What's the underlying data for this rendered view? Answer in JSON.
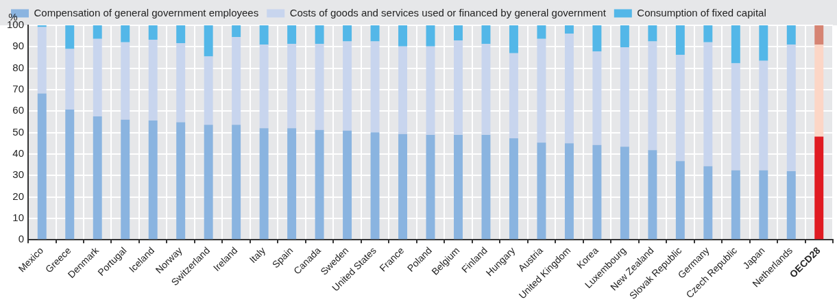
{
  "chart_data": {
    "type": "bar",
    "stacked": true,
    "ylabel": "%",
    "ylim": [
      0,
      100
    ],
    "yticks": [
      0,
      10,
      20,
      30,
      40,
      50,
      60,
      70,
      80,
      90,
      100
    ],
    "grid": true,
    "legend": "top",
    "categories": [
      "Mexico",
      "Greece",
      "Denmark",
      "Portugal",
      "Iceland",
      "Norway",
      "Switzerland",
      "Ireland",
      "Italy",
      "Spain",
      "Canada",
      "Sweden",
      "United States",
      "France",
      "Poland",
      "Belgium",
      "Finland",
      "Hungary",
      "Austria",
      "United Kingdom",
      "Korea",
      "Luxembourg",
      "New Zealand",
      "Slovak Republic",
      "Germany",
      "Czech Republic",
      "Japan",
      "Netherlands",
      "OECD28"
    ],
    "series": [
      {
        "name": "Compensation of general government employees",
        "color": "#8ab4e0",
        "colors": [
          "#8ab4e0",
          "#8ab4e0",
          "#8ab4e0",
          "#8ab4e0",
          "#8ab4e0",
          "#8ab4e0",
          "#8ab4e0",
          "#8ab4e0",
          "#8ab4e0",
          "#8ab4e0",
          "#8ab4e0",
          "#8ab4e0",
          "#8ab4e0",
          "#8ab4e0",
          "#8ab4e0",
          "#8ab4e0",
          "#8ab4e0",
          "#8ab4e0",
          "#8ab4e0",
          "#8ab4e0",
          "#8ab4e0",
          "#8ab4e0",
          "#8ab4e0",
          "#8ab4e0",
          "#8ab4e0",
          "#8ab4e0",
          "#8ab4e0",
          "#8ab4e0",
          "#e01b22"
        ],
        "values": [
          68.2,
          60.7,
          57.5,
          56.0,
          55.6,
          54.8,
          53.6,
          53.6,
          52.0,
          52.0,
          51.2,
          50.9,
          50.1,
          49.3,
          48.9,
          48.9,
          48.9,
          47.3,
          45.3,
          45.0,
          44.2,
          43.4,
          41.8,
          36.7,
          34.3,
          32.4,
          32.4,
          32.0,
          48.1
        ]
      },
      {
        "name": "Costs of goods and services used or financed by general government",
        "color": "#c8d5ee",
        "colors": [
          "#c8d5ee",
          "#c8d5ee",
          "#c8d5ee",
          "#c8d5ee",
          "#c8d5ee",
          "#c8d5ee",
          "#c8d5ee",
          "#c8d5ee",
          "#c8d5ee",
          "#c8d5ee",
          "#c8d5ee",
          "#c8d5ee",
          "#c8d5ee",
          "#c8d5ee",
          "#c8d5ee",
          "#c8d5ee",
          "#c8d5ee",
          "#c8d5ee",
          "#c8d5ee",
          "#c8d5ee",
          "#c8d5ee",
          "#c8d5ee",
          "#c8d5ee",
          "#c8d5ee",
          "#c8d5ee",
          "#c8d5ee",
          "#c8d5ee",
          "#c8d5ee",
          "#fcd6c6"
        ],
        "values": [
          31.0,
          28.3,
          36.2,
          36.1,
          37.7,
          36.9,
          31.9,
          40.9,
          39.0,
          39.3,
          40.1,
          41.6,
          42.4,
          40.9,
          41.3,
          44.0,
          42.4,
          39.7,
          48.4,
          51.1,
          43.6,
          46.4,
          50.7,
          49.5,
          57.8,
          49.9,
          51.1,
          59.0,
          42.9
        ]
      },
      {
        "name": "Consumption of fixed capital",
        "color": "#53b7e8",
        "colors": [
          "#53b7e8",
          "#53b7e8",
          "#53b7e8",
          "#53b7e8",
          "#53b7e8",
          "#53b7e8",
          "#53b7e8",
          "#53b7e8",
          "#53b7e8",
          "#53b7e8",
          "#53b7e8",
          "#53b7e8",
          "#53b7e8",
          "#53b7e8",
          "#53b7e8",
          "#53b7e8",
          "#53b7e8",
          "#53b7e8",
          "#53b7e8",
          "#53b7e8",
          "#53b7e8",
          "#53b7e8",
          "#53b7e8",
          "#53b7e8",
          "#53b7e8",
          "#53b7e8",
          "#53b7e8",
          "#53b7e8",
          "#d68473"
        ],
        "values": [
          0.8,
          11.0,
          6.3,
          7.9,
          6.7,
          8.3,
          14.5,
          5.5,
          9.0,
          8.7,
          8.7,
          7.5,
          7.5,
          9.8,
          9.8,
          7.1,
          8.7,
          13.0,
          6.3,
          3.9,
          12.2,
          10.2,
          7.5,
          13.8,
          7.9,
          17.7,
          16.5,
          9.0,
          9.0
        ]
      }
    ]
  }
}
